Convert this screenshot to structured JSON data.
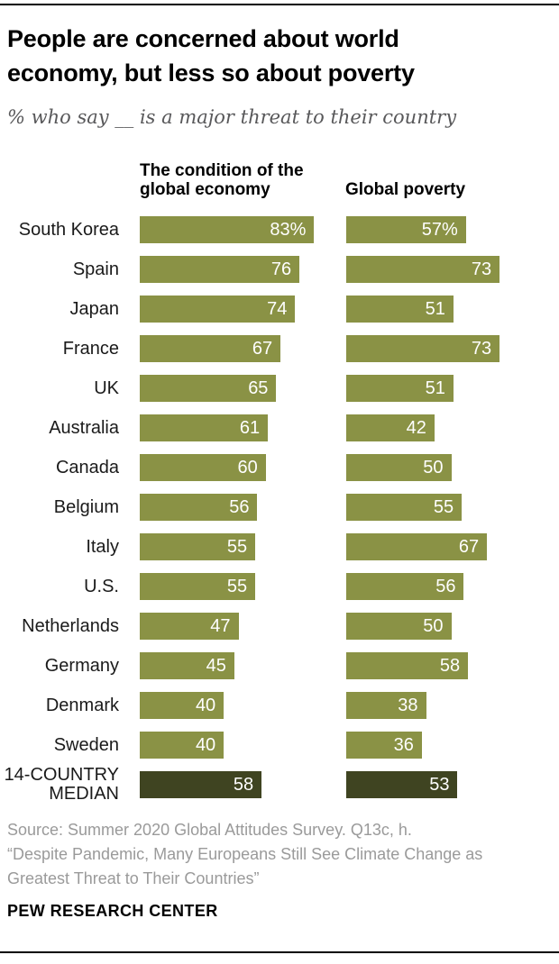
{
  "header": {
    "title": "People are concerned about world\neconomy, but less so about poverty",
    "subtitle": "% who say __ is a major threat to their country"
  },
  "chart_data": {
    "type": "bar",
    "orientation": "horizontal",
    "title": "People are concerned about world economy, but less so about poverty",
    "subtitle": "% who say __ is a major threat to their country",
    "xlim": [
      0,
      100
    ],
    "grid": false,
    "column_headers": {
      "economy": "The condition of the\nglobal economy",
      "poverty": "Global poverty"
    },
    "categories": [
      "South Korea",
      "Spain",
      "Japan",
      "France",
      "UK",
      "Australia",
      "Canada",
      "Belgium",
      "Italy",
      "U.S.",
      "Netherlands",
      "Germany",
      "Denmark",
      "Sweden",
      "14-COUNTRY MEDIAN"
    ],
    "series": [
      {
        "name": "The condition of the global economy",
        "values": [
          83,
          76,
          74,
          67,
          65,
          61,
          60,
          56,
          55,
          55,
          47,
          45,
          40,
          40,
          58
        ],
        "labels": [
          "83%",
          "76",
          "74",
          "67",
          "65",
          "61",
          "60",
          "56",
          "55",
          "55",
          "47",
          "45",
          "40",
          "40",
          "58"
        ]
      },
      {
        "name": "Global poverty",
        "values": [
          57,
          73,
          51,
          73,
          51,
          42,
          50,
          55,
          67,
          56,
          50,
          58,
          38,
          36,
          53
        ],
        "labels": [
          "57%",
          "73",
          "51",
          "73",
          "51",
          "42",
          "50",
          "55",
          "67",
          "56",
          "50",
          "58",
          "38",
          "36",
          "53"
        ]
      }
    ],
    "median_row": "14-COUNTRY MEDIAN",
    "colors": {
      "bar": "#8A9245",
      "median_bar": "#3F4421",
      "value_text": "#ffffff",
      "subtitle_text": "#58585a",
      "source_text": "#9a9a9a"
    }
  },
  "footer": {
    "source": "Source: Summer 2020 Global Attitudes Survey. Q13c, h.\n“Despite Pandemic, Many Europeans Still See Climate Change as\nGreatest Threat to Their Countries”",
    "branding": "PEW RESEARCH CENTER"
  }
}
